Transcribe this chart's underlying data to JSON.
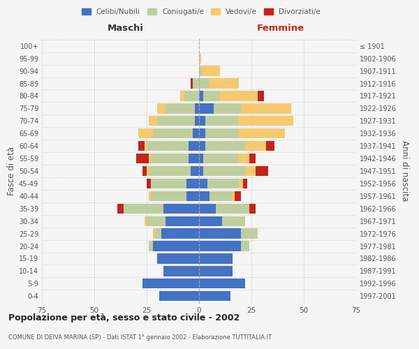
{
  "age_groups": [
    "0-4",
    "5-9",
    "10-14",
    "15-19",
    "20-24",
    "25-29",
    "30-34",
    "35-39",
    "40-44",
    "45-49",
    "50-54",
    "55-59",
    "60-64",
    "65-69",
    "70-74",
    "75-79",
    "80-84",
    "85-89",
    "90-94",
    "95-99",
    "100+"
  ],
  "birth_years": [
    "1997-2001",
    "1992-1996",
    "1987-1991",
    "1982-1986",
    "1977-1981",
    "1972-1976",
    "1967-1971",
    "1962-1966",
    "1957-1961",
    "1952-1956",
    "1947-1951",
    "1942-1946",
    "1937-1941",
    "1932-1936",
    "1927-1931",
    "1922-1926",
    "1917-1921",
    "1912-1916",
    "1907-1911",
    "1902-1906",
    "≤ 1901"
  ],
  "male": {
    "celibi": [
      19,
      27,
      17,
      20,
      22,
      18,
      16,
      17,
      6,
      6,
      4,
      5,
      5,
      3,
      2,
      2,
      0,
      0,
      0,
      0,
      0
    ],
    "coniugati": [
      0,
      0,
      0,
      0,
      2,
      3,
      9,
      19,
      17,
      17,
      20,
      18,
      20,
      19,
      18,
      14,
      7,
      3,
      0,
      0,
      0
    ],
    "vedovi": [
      0,
      0,
      0,
      0,
      0,
      1,
      1,
      0,
      1,
      0,
      1,
      1,
      1,
      7,
      4,
      4,
      2,
      0,
      0,
      0,
      0
    ],
    "divorziati": [
      0,
      0,
      0,
      0,
      0,
      0,
      0,
      3,
      0,
      2,
      2,
      6,
      3,
      0,
      0,
      0,
      0,
      1,
      0,
      0,
      0
    ]
  },
  "female": {
    "nubili": [
      15,
      22,
      16,
      16,
      20,
      20,
      11,
      8,
      5,
      4,
      2,
      2,
      3,
      3,
      3,
      7,
      2,
      0,
      0,
      0,
      0
    ],
    "coniugate": [
      0,
      0,
      0,
      0,
      4,
      8,
      11,
      16,
      11,
      15,
      20,
      17,
      19,
      16,
      16,
      13,
      8,
      5,
      1,
      0,
      0
    ],
    "vedove": [
      0,
      0,
      0,
      0,
      0,
      0,
      0,
      0,
      1,
      2,
      5,
      5,
      10,
      22,
      26,
      24,
      18,
      14,
      9,
      1,
      0
    ],
    "divorziate": [
      0,
      0,
      0,
      0,
      0,
      0,
      0,
      3,
      3,
      2,
      6,
      3,
      4,
      0,
      0,
      0,
      3,
      0,
      0,
      0,
      0
    ]
  },
  "colors": {
    "celibi": "#4472C4",
    "coniugati": "#BFCE9E",
    "vedovi": "#F5C96E",
    "divorziati": "#C0261C"
  },
  "xlim": 75,
  "title": "Popolazione per età, sesso e stato civile - 2002",
  "subtitle": "COMUNE DI DEIVA MARINA (SP) - Dati ISTAT 1° gennaio 2002 - Elaborazione TUTTITALIA.IT",
  "ylabel_left": "Fasce di età",
  "ylabel_right": "Anni di nascita",
  "xlabel_left": "Maschi",
  "xlabel_right": "Femmine",
  "bg_color": "#F5F5F5",
  "bar_height": 0.8,
  "grid_color": "#CCCCCC"
}
